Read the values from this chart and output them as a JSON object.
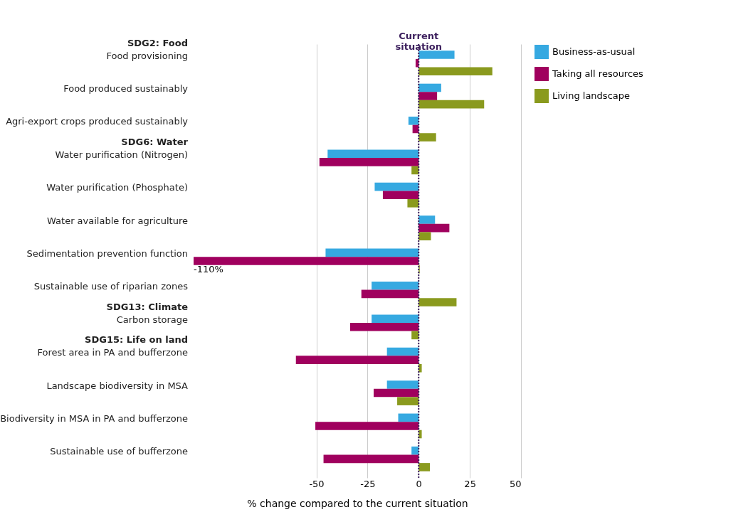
{
  "chart_data": {
    "type": "bar",
    "orientation": "horizontal",
    "xlabel": "% change compared to the current situation",
    "categories": [
      "SDG2: Food\nFood provisioning",
      "Food produced sustainably",
      "Agri-export crops produced sustainably",
      "SDG6: Water\nWater purification (Nitrogen)",
      "Water purification (Phosphate)",
      "Water available for agriculture",
      "Sedimentation prevention function",
      "Sustainable use of riparian zones",
      "SDG13: Climate\nCarbon storage",
      "SDG15: Life on land\nForest area in PA and bufferzone",
      "Landscape biodiversity in MSA",
      "Biodiversity in MSA in PA and bufferzone",
      "Sustainable use of bufferzone"
    ],
    "series": [
      {
        "name": "Business-as-usual",
        "color": "#36a9e1",
        "values": [
          17.5,
          11,
          -5,
          -44.5,
          -21.5,
          8,
          -45.5,
          -23,
          -23,
          -15.5,
          -15.5,
          -10,
          -3.5
        ]
      },
      {
        "name": "Taking all resources",
        "color": "#a0005e",
        "values": [
          -1.5,
          9,
          -3,
          -48.5,
          -17.5,
          15,
          -110,
          -28,
          -33.5,
          -60,
          -22,
          -50.5,
          -46.5
        ],
        "value_labels": [
          null,
          null,
          null,
          null,
          null,
          null,
          "-110%",
          null,
          null,
          null,
          null,
          null,
          null
        ]
      },
      {
        "name": "Living landscape",
        "color": "#8a9a1e",
        "values": [
          36,
          32,
          8.5,
          -3.5,
          -5.5,
          6,
          0.5,
          18.5,
          -3.5,
          1.5,
          -10.5,
          1.5,
          5.5
        ]
      }
    ],
    "xlim": [
      -110,
      50
    ],
    "xticks": [
      -50,
      -25,
      0,
      25,
      50
    ],
    "grid": "x",
    "legend": "top right",
    "ref_lines": [
      {
        "axis": "x",
        "value": 0,
        "label": "Current situation",
        "color": "#3b1e5c",
        "line_style": "dotted"
      }
    ]
  }
}
